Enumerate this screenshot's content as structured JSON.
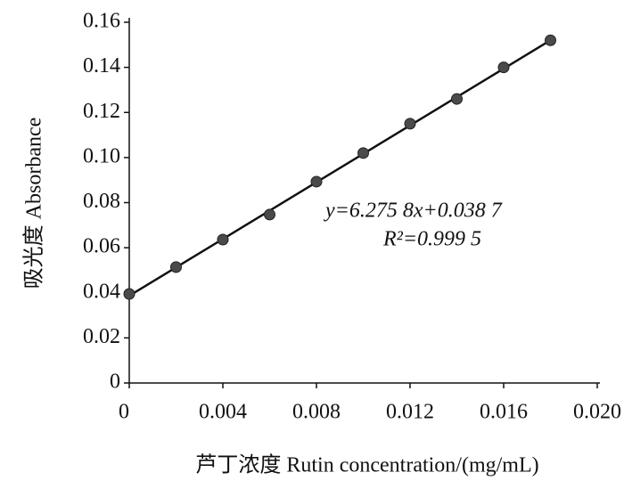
{
  "chart_data": {
    "type": "scatter",
    "x_label": "芦丁浓度  Rutin concentration/(mg/mL)",
    "y_label": "吸光度  Absorbance",
    "annotations": [
      "y=6.275 8x+0.038 7",
      "R²=0.999 5"
    ],
    "trendline": true,
    "color": "#4a4a4a",
    "line_color": "#111111",
    "x": [
      0,
      0.002,
      0.004,
      0.006,
      0.008,
      0.01,
      0.012,
      0.014,
      0.016,
      0.018
    ],
    "values": [
      0.0395,
      0.0514,
      0.0636,
      0.0747,
      0.0893,
      0.102,
      0.115,
      0.126,
      0.14,
      0.152
    ],
    "xlim": [
      0,
      0.02
    ],
    "xticks": [
      0,
      0.004,
      0.008,
      0.012,
      0.016,
      {
        "value": 0.02,
        "label": "0.020"
      }
    ],
    "ylim": [
      0,
      0.16
    ],
    "yticks": [
      0,
      0.02,
      0.04,
      0.06,
      0.08,
      {
        "value": 0.1,
        "label": "0.10"
      },
      0.12,
      0.14,
      0.16
    ]
  }
}
